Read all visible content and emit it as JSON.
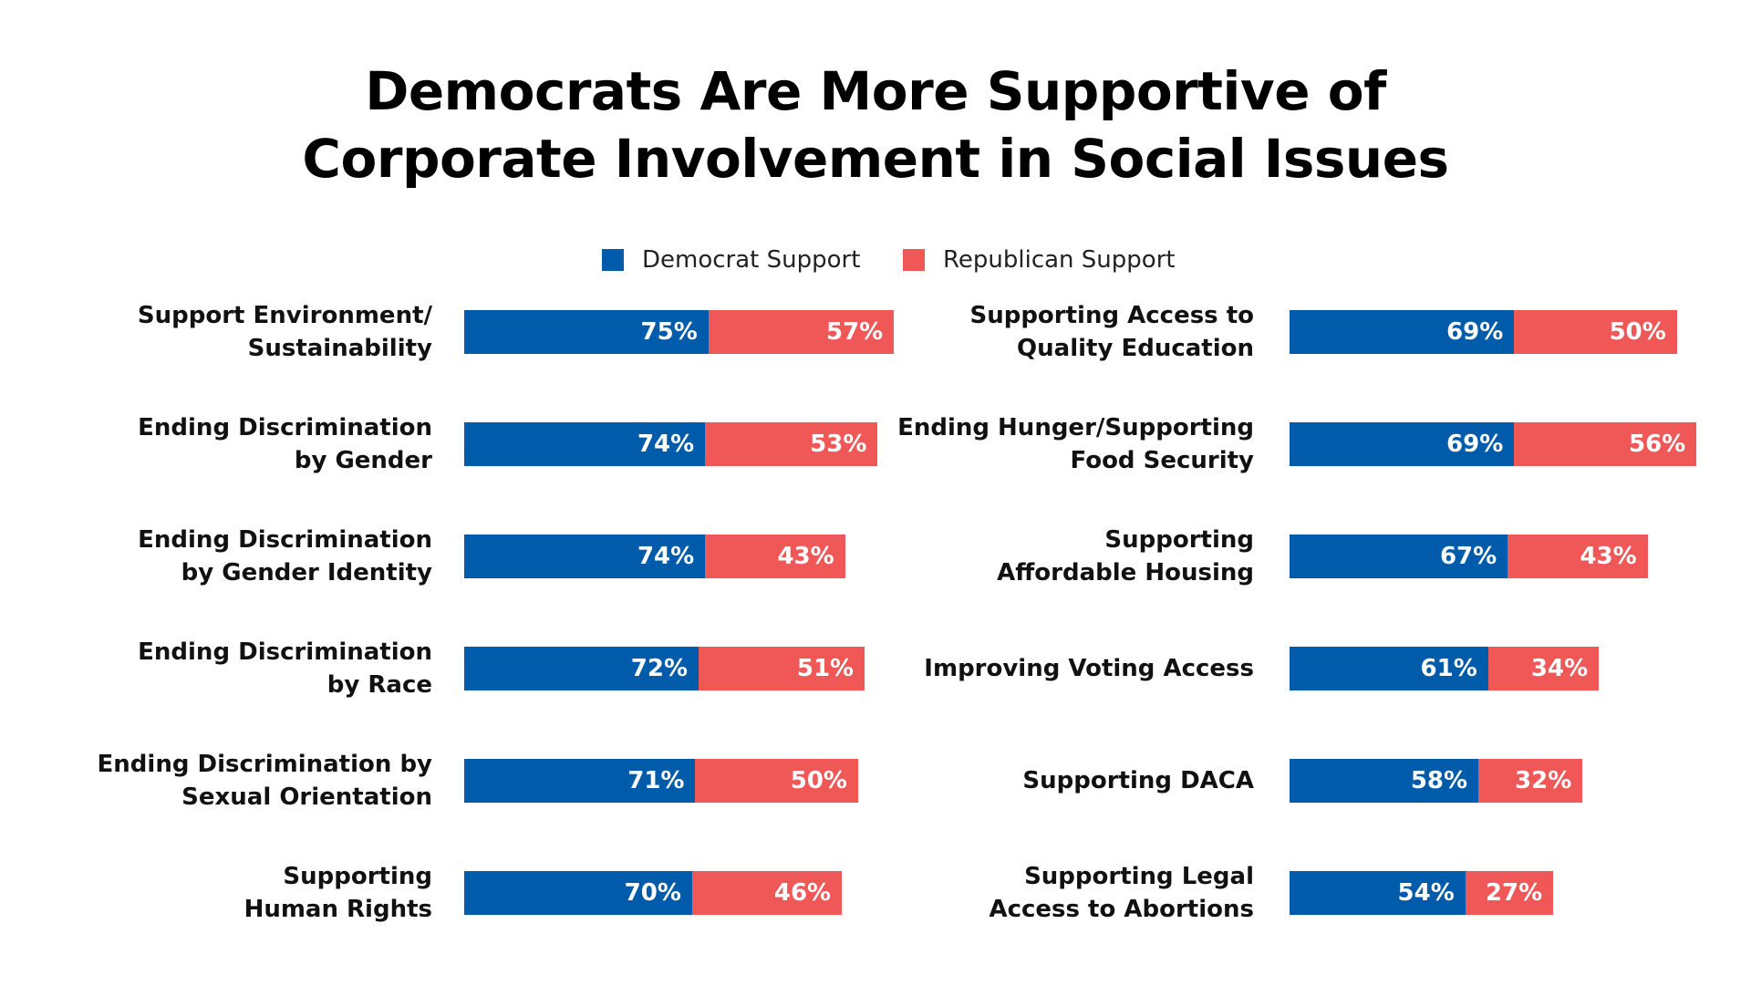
{
  "colors": {
    "democrat": "#005baa",
    "republican": "#f05757"
  },
  "chart_data": {
    "type": "bar",
    "orientation": "horizontal",
    "stacked": true,
    "title": [
      "Democrats Are More Supportive of",
      "Corporate Involvement in Social Issues"
    ],
    "legend": {
      "placement": "top-center",
      "entries": [
        "Democrat Support",
        "Republican Support"
      ]
    },
    "grid": false,
    "panels": [
      {
        "categories": [
          [
            "Support Environment/",
            "Sustainability"
          ],
          [
            "Ending Discrimination",
            "by Gender"
          ],
          [
            "Ending Discrimination",
            "by Gender Identity"
          ],
          [
            "Ending Discrimination",
            "by Race"
          ],
          [
            "Ending Discrimination by",
            "Sexual Orientation"
          ],
          [
            "Supporting",
            "Human Rights"
          ]
        ],
        "series": [
          {
            "name": "Democrat Support",
            "values": [
              75,
              74,
              74,
              72,
              71,
              70
            ],
            "labels": [
              "75%",
              "74%",
              "74%",
              "72%",
              "71%",
              "70%"
            ]
          },
          {
            "name": "Republican Support",
            "values": [
              57,
              53,
              43,
              51,
              50,
              46
            ],
            "labels": [
              "57%",
              "53%",
              "43%",
              "51%",
              "50%",
              "46%"
            ]
          }
        ]
      },
      {
        "categories": [
          [
            "Supporting Access to",
            "Quality Education"
          ],
          [
            "Ending Hunger/Supporting",
            "Food Security"
          ],
          [
            "Supporting",
            "Affordable Housing"
          ],
          [
            "Improving Voting Access"
          ],
          [
            "Supporting DACA"
          ],
          [
            "Supporting Legal",
            "Access to Abortions"
          ]
        ],
        "series": [
          {
            "name": "Democrat Support",
            "values": [
              69,
              69,
              67,
              61,
              58,
              54
            ],
            "labels": [
              "69%",
              "69%",
              "67%",
              "61%",
              "58%",
              "54%"
            ]
          },
          {
            "name": "Republican Support",
            "values": [
              50,
              56,
              43,
              34,
              32,
              27
            ],
            "labels": [
              "50%",
              "56%",
              "43%",
              "34%",
              "32%",
              "27%"
            ]
          }
        ]
      }
    ]
  }
}
